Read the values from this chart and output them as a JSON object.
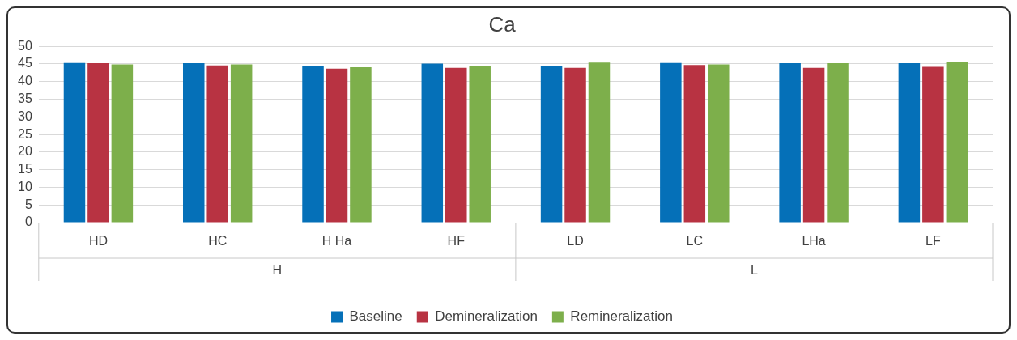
{
  "chart_data": {
    "type": "bar",
    "title": "Ca",
    "categories": [
      "HD",
      "HC",
      "H Ha",
      "HF",
      "LD",
      "LC",
      "LHa",
      "LF"
    ],
    "series": [
      {
        "name": "Baseline",
        "color": "#0570b8",
        "values": [
          45.3,
          45.2,
          44.3,
          45.1,
          44.4,
          45.3,
          45.2,
          45.2
        ]
      },
      {
        "name": "Demineralization",
        "color": "#b83342",
        "values": [
          45.2,
          44.6,
          43.7,
          43.9,
          43.9,
          44.7,
          43.9,
          44.2
        ]
      },
      {
        "name": "Remineralization",
        "color": "#7daf4b",
        "values": [
          44.9,
          44.9,
          44.1,
          44.5,
          45.4,
          44.9,
          45.2,
          45.5
        ]
      }
    ],
    "annotations": [
      "H",
      "L"
    ],
    "ylim": [
      0,
      50
    ],
    "yticks": [
      0,
      5,
      10,
      15,
      20,
      25,
      30,
      35,
      40,
      45,
      50
    ],
    "grid": "y",
    "legend": "bottom"
  }
}
